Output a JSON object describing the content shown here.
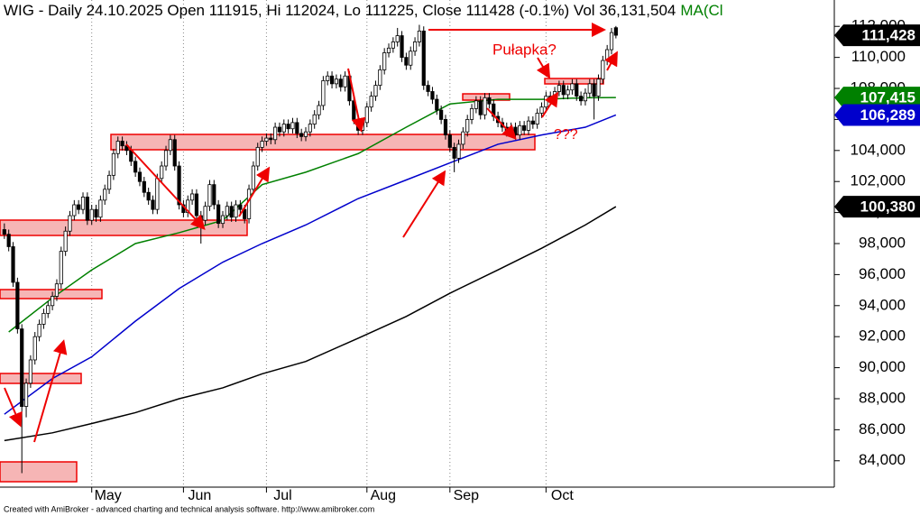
{
  "chart_data": {
    "type": "candlestick",
    "title": "WIG - Daily 24.10.2025 Open 111915, Hi 112024, Lo 111225, Close 111428 (-0.1%) Vol 36,131,504",
    "title_ma": "MA(Cl",
    "footer": "Created with AmiBroker - advanced charting and technical analysis software. http://www.amibroker.com",
    "annotations": [
      "Pułapka?",
      "???"
    ],
    "ylim": [
      82300,
      113700
    ],
    "yticks": [
      {
        "value": 84000,
        "label": "84,000"
      },
      {
        "value": 86000,
        "label": "86,000"
      },
      {
        "value": 88000,
        "label": "88,000"
      },
      {
        "value": 90000,
        "label": "90,000"
      },
      {
        "value": 92000,
        "label": "92,000"
      },
      {
        "value": 94000,
        "label": "94,000"
      },
      {
        "value": 96000,
        "label": "96,000"
      },
      {
        "value": 98000,
        "label": "98,000"
      },
      {
        "value": 100000,
        "label": "100,000"
      },
      {
        "value": 102000,
        "label": "102,000"
      },
      {
        "value": 104000,
        "label": "104,000"
      },
      {
        "value": 106000,
        "label": "106,000"
      },
      {
        "value": 108000,
        "label": "108,000"
      },
      {
        "value": 110000,
        "label": "110,000"
      },
      {
        "value": 112000,
        "label": "112,000"
      }
    ],
    "xlim": [
      -1,
      190
    ],
    "xticks": [
      {
        "value": 20,
        "label": "May"
      },
      {
        "value": 41,
        "label": "Jun"
      },
      {
        "value": 60,
        "label": "Jul"
      },
      {
        "value": 83,
        "label": "Aug"
      },
      {
        "value": 102,
        "label": "Sep"
      },
      {
        "value": 124,
        "label": "Oct"
      }
    ],
    "up_color": "#ffffff",
    "down_color": "#000000",
    "open": [
      98900,
      98600,
      97800,
      95500,
      92500,
      87500,
      89000,
      90500,
      92000,
      92800,
      93500,
      94000,
      94600,
      95400,
      97500,
      98800,
      99800,
      100500,
      100200,
      101000,
      99500,
      100200,
      99700,
      100800,
      101500,
      102400,
      103800,
      104600,
      104300,
      104000,
      103300,
      102600,
      102000,
      101300,
      100800,
      100200,
      102200,
      103000,
      104000,
      104700,
      103000,
      100500,
      100000,
      100800,
      101200,
      99800,
      99500,
      100400,
      101800,
      100500,
      99300,
      99800,
      100400,
      99700,
      100500,
      100200,
      99600,
      101500,
      103000,
      104200,
      104600,
      104800,
      104700,
      105500,
      105200,
      105700,
      105400,
      105800,
      105100,
      104900,
      105200,
      105700,
      106300,
      106900,
      108500,
      108800,
      108300,
      108600,
      108100,
      108800,
      107200,
      106000,
      105300,
      105800,
      106800,
      107500,
      108200,
      109200,
      110300,
      110600,
      111000,
      111400,
      110000,
      109500,
      110400,
      111000,
      111700,
      108200,
      107800,
      107300,
      106600,
      106000,
      105000,
      104200,
      103500,
      104400,
      105200,
      106000,
      106700,
      107200,
      106300,
      107400,
      107000,
      106200,
      105800,
      105500,
      105200,
      105500,
      105000,
      105600,
      105300,
      105900,
      105700,
      106400,
      106800,
      107500,
      107300,
      107800,
      108200,
      107600,
      107900,
      108300,
      107500,
      107200,
      107700,
      108300,
      107500,
      108600,
      109800,
      110500,
      111915
    ],
    "high": [
      99300,
      98900,
      98100,
      95800,
      92800,
      89300,
      90800,
      92300,
      93100,
      93800,
      94300,
      94900,
      95700,
      97800,
      99100,
      100100,
      100800,
      100800,
      101300,
      101300,
      100500,
      100500,
      101100,
      101800,
      102700,
      104100,
      104900,
      104900,
      104600,
      104300,
      103600,
      102900,
      102300,
      101600,
      101100,
      102500,
      103300,
      104300,
      105000,
      105000,
      103300,
      100800,
      101100,
      101500,
      101500,
      100100,
      100700,
      102100,
      102100,
      100800,
      100100,
      100700,
      100700,
      100800,
      100800,
      100500,
      101800,
      103300,
      104500,
      104900,
      105100,
      105100,
      105800,
      105800,
      106000,
      106000,
      106100,
      106100,
      105400,
      105500,
      106000,
      106600,
      107200,
      108800,
      109100,
      109100,
      108900,
      108900,
      109100,
      109100,
      107500,
      106300,
      106100,
      107100,
      107800,
      108500,
      109500,
      110600,
      110900,
      111300,
      111900,
      111700,
      110300,
      110700,
      111300,
      112100,
      112000,
      108500,
      108100,
      107600,
      106900,
      106300,
      105300,
      104500,
      104700,
      105500,
      106300,
      107000,
      107500,
      107500,
      107700,
      107700,
      107300,
      106500,
      106100,
      105800,
      105800,
      105800,
      105900,
      105900,
      106200,
      106200,
      106700,
      107100,
      107800,
      107800,
      108100,
      108500,
      108500,
      108200,
      108600,
      108600,
      107800,
      108000,
      108600,
      108600,
      108900,
      110100,
      110800,
      111900,
      112024
    ],
    "low": [
      98300,
      97500,
      95200,
      92200,
      83200,
      86800,
      88700,
      90200,
      91700,
      92500,
      93200,
      93700,
      94300,
      95100,
      97200,
      98500,
      99500,
      99900,
      99900,
      99200,
      99200,
      99400,
      99400,
      100500,
      101200,
      102100,
      103500,
      104000,
      103700,
      103000,
      102300,
      101700,
      101000,
      100500,
      99900,
      99900,
      101900,
      102700,
      103700,
      102700,
      100200,
      99700,
      99700,
      100500,
      99500,
      98000,
      99200,
      100100,
      100200,
      99000,
      99000,
      99500,
      99400,
      99400,
      99900,
      99300,
      99300,
      101200,
      102700,
      103900,
      104300,
      104400,
      104400,
      104900,
      104900,
      105100,
      105100,
      104800,
      104600,
      104600,
      104900,
      105400,
      106000,
      106600,
      108200,
      108000,
      108000,
      107800,
      107800,
      106900,
      105700,
      105000,
      105000,
      105500,
      106500,
      107200,
      107900,
      108900,
      110000,
      110300,
      110700,
      109700,
      109200,
      109200,
      110100,
      110700,
      107900,
      107500,
      107000,
      106300,
      105700,
      104700,
      103900,
      102600,
      103200,
      104100,
      104900,
      105700,
      106400,
      106000,
      106000,
      106700,
      105900,
      105500,
      105200,
      104900,
      104900,
      104700,
      104700,
      105000,
      105000,
      105400,
      105400,
      106100,
      106500,
      107000,
      107000,
      107500,
      107300,
      107300,
      107600,
      107200,
      106900,
      106900,
      107400,
      106000,
      107200,
      108300,
      109500,
      110200,
      111225
    ],
    "close": [
      98600,
      97800,
      95500,
      92500,
      87500,
      89000,
      90500,
      92000,
      92800,
      93500,
      94000,
      94600,
      95400,
      97500,
      98800,
      99800,
      100500,
      100200,
      101000,
      99500,
      100200,
      99700,
      100800,
      101500,
      102400,
      103800,
      104600,
      104300,
      104000,
      103300,
      102600,
      102000,
      101300,
      100800,
      100200,
      102200,
      103000,
      104000,
      104700,
      103000,
      100500,
      100000,
      100800,
      101200,
      99800,
      99500,
      100400,
      101800,
      100500,
      99300,
      99800,
      100400,
      99700,
      100500,
      100200,
      99600,
      101500,
      103000,
      104200,
      104600,
      104800,
      104700,
      105500,
      105200,
      105700,
      105400,
      105800,
      105100,
      104900,
      105200,
      105700,
      106300,
      106900,
      108500,
      108800,
      108300,
      108600,
      108100,
      108800,
      107200,
      106000,
      105300,
      105800,
      106800,
      107500,
      108200,
      109200,
      110300,
      110600,
      111000,
      111400,
      110000,
      109500,
      110400,
      111000,
      111700,
      108200,
      107800,
      107300,
      106600,
      106000,
      105000,
      104200,
      103500,
      104400,
      105200,
      106000,
      106700,
      107200,
      106300,
      107400,
      107000,
      106200,
      105800,
      105500,
      105200,
      105500,
      105000,
      105600,
      105300,
      105900,
      105700,
      106400,
      106800,
      107500,
      107300,
      107800,
      108200,
      107600,
      107900,
      108300,
      107500,
      107200,
      107700,
      108300,
      107500,
      108600,
      109800,
      110500,
      111600,
      111428
    ],
    "close_last": {
      "value": 111428,
      "label": "111,428"
    },
    "series": [
      {
        "color": "#008000",
        "x": [
          1,
          11,
          20,
          30,
          40,
          50,
          59,
          69,
          81,
          92,
          102,
          113,
          123,
          133,
          140
        ],
        "values": [
          92300,
          94500,
          96300,
          98000,
          98700,
          99500,
          101800,
          102600,
          103800,
          105500,
          107000,
          107300,
          107300,
          107400,
          107415
        ],
        "last": {
          "value": 107415,
          "label": "107,415"
        }
      },
      {
        "color": "#0000cc",
        "x": [
          0,
          11,
          20,
          30,
          40,
          50,
          59,
          69,
          81,
          92,
          102,
          113,
          123,
          133,
          140
        ],
        "values": [
          87000,
          89300,
          90700,
          93000,
          95100,
          96800,
          98000,
          99200,
          100900,
          102100,
          103200,
          104400,
          105000,
          105500,
          106289
        ],
        "last": {
          "value": 106289,
          "label": "106,289"
        }
      },
      {
        "color": "#000000",
        "x": [
          0,
          11,
          20,
          30,
          40,
          50,
          59,
          69,
          81,
          92,
          102,
          113,
          123,
          133,
          140
        ],
        "values": [
          85300,
          85800,
          86400,
          87100,
          88000,
          88700,
          89600,
          90400,
          91900,
          93300,
          94800,
          96300,
          97700,
          99200,
          100380
        ],
        "last": {
          "value": 100380,
          "label": "100,380"
        }
      }
    ]
  }
}
